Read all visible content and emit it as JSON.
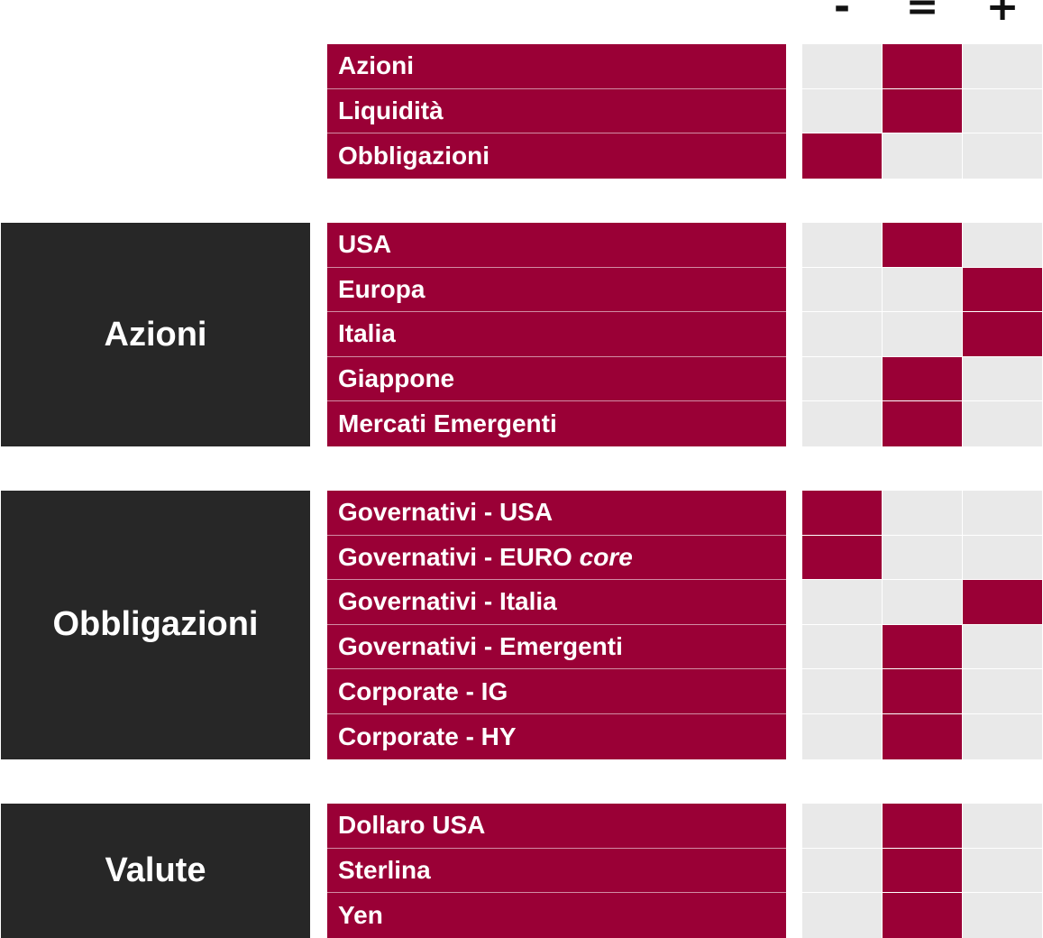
{
  "symbols": {
    "minus": "-",
    "equal": "=",
    "plus": "+"
  },
  "colors": {
    "accent": "#9a0036",
    "category_bg": "#272727",
    "empty_cell": "#e9e9e9"
  },
  "groups": [
    {
      "category": "",
      "rows": [
        {
          "label": "Azioni",
          "rating": "="
        },
        {
          "label": "Liquidità",
          "rating": "="
        },
        {
          "label": "Obbligazioni",
          "rating": "-"
        }
      ]
    },
    {
      "category": "Azioni",
      "rows": [
        {
          "label": "USA",
          "rating": "="
        },
        {
          "label": "Europa",
          "rating": "+"
        },
        {
          "label": "Italia",
          "rating": "+"
        },
        {
          "label": "Giappone",
          "rating": "="
        },
        {
          "label": "Mercati Emergenti",
          "rating": "="
        }
      ]
    },
    {
      "category": "Obbligazioni",
      "rows": [
        {
          "label": "Governativi - USA",
          "rating": "-"
        },
        {
          "label": "Governativi - EURO",
          "label_italic": "core",
          "rating": "-"
        },
        {
          "label": "Governativi - Italia",
          "rating": "+"
        },
        {
          "label": "Governativi - Emergenti",
          "rating": "="
        },
        {
          "label": "Corporate - IG",
          "rating": "="
        },
        {
          "label": "Corporate - HY",
          "rating": "="
        }
      ]
    },
    {
      "category": "Valute",
      "rows": [
        {
          "label": "Dollaro USA",
          "rating": "="
        },
        {
          "label": "Sterlina",
          "rating": "="
        },
        {
          "label": "Yen",
          "rating": "="
        }
      ]
    }
  ]
}
